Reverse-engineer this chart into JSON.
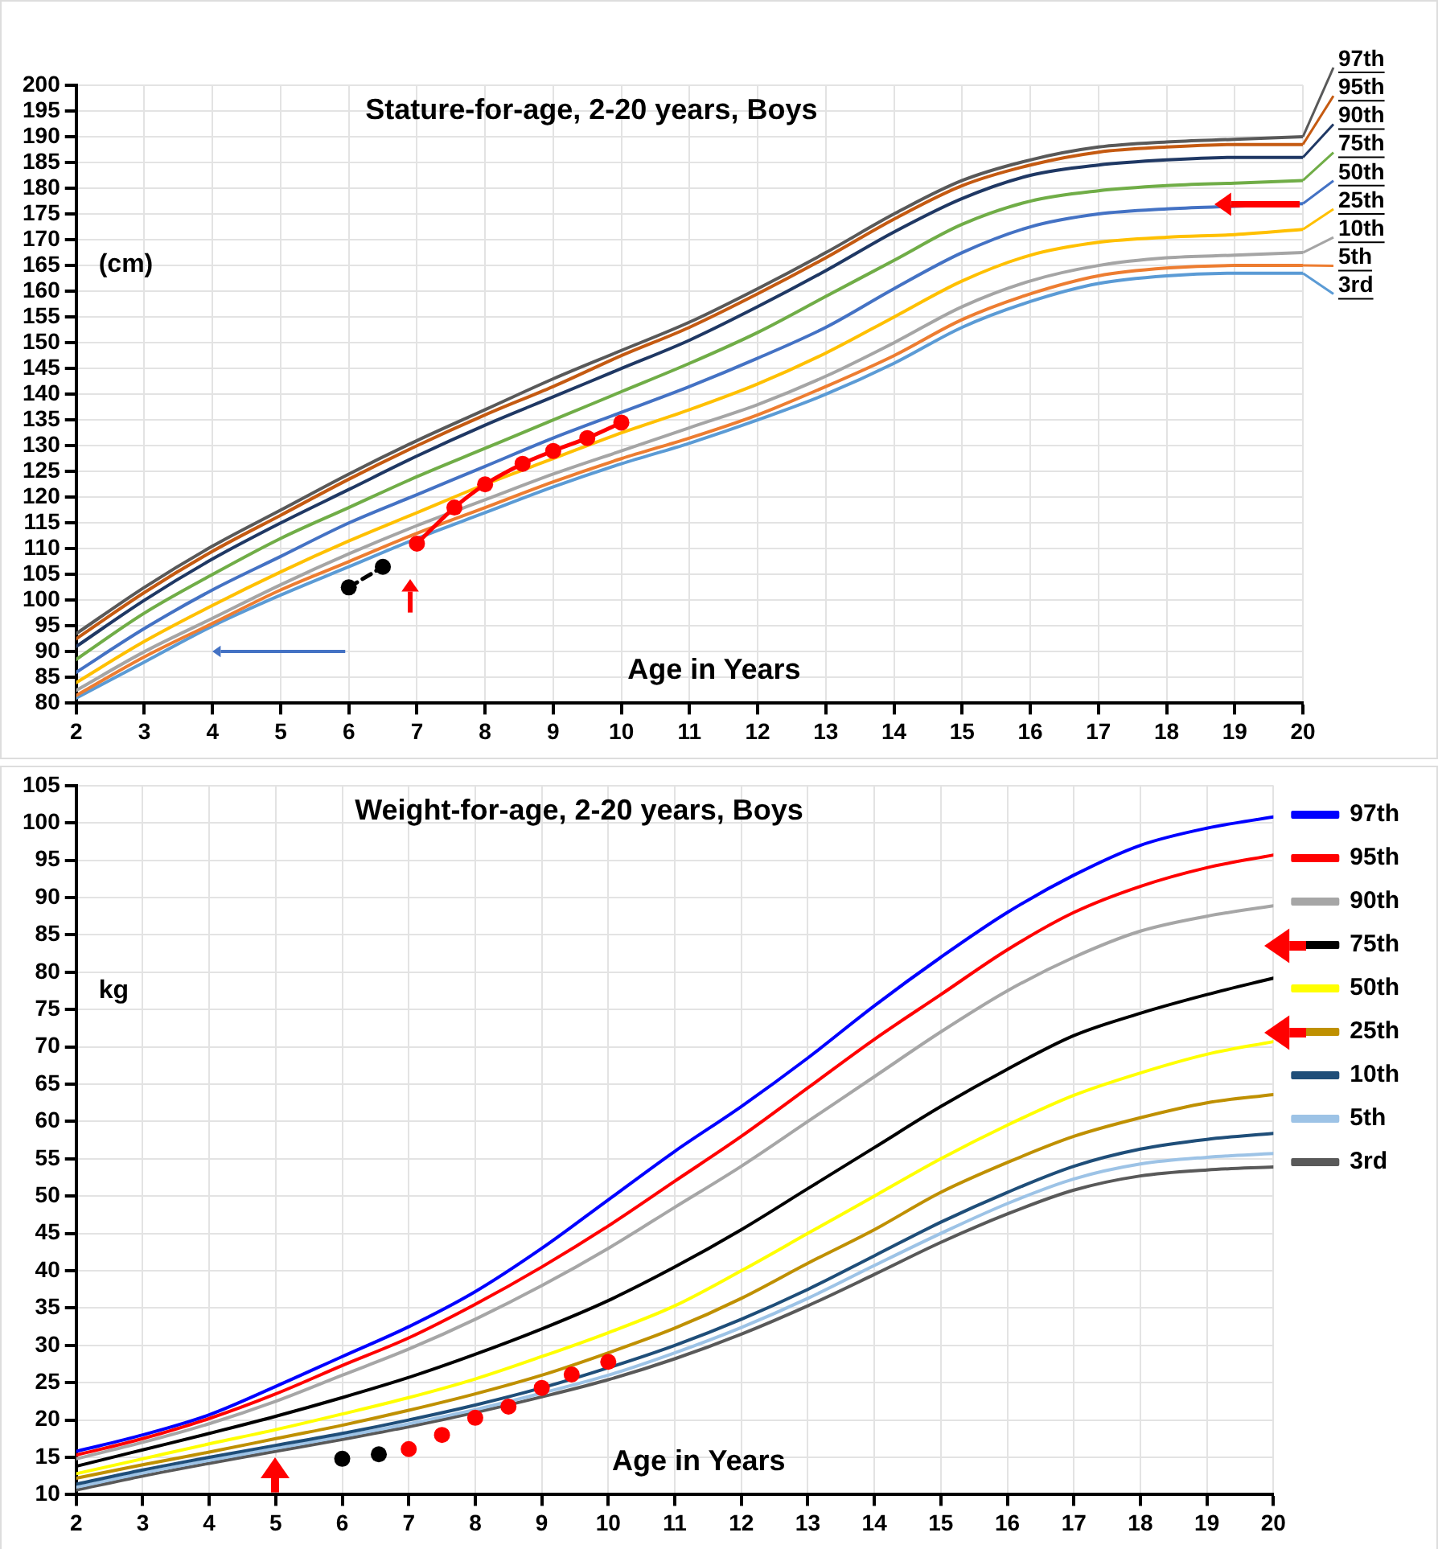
{
  "chart_data": [
    {
      "type": "line",
      "title": "Stature-for-age, 2-20 years, Boys",
      "xlabel": "Age in Years",
      "ylabel": "(cm)",
      "xlim": [
        2,
        20
      ],
      "xticks": [
        2,
        3,
        4,
        5,
        6,
        7,
        8,
        9,
        10,
        11,
        12,
        13,
        14,
        15,
        16,
        17,
        18,
        19,
        20
      ],
      "ylim": [
        80,
        200
      ],
      "yticks": [
        80,
        85,
        90,
        95,
        100,
        105,
        110,
        115,
        120,
        125,
        130,
        135,
        140,
        145,
        150,
        155,
        160,
        165,
        170,
        175,
        180,
        185,
        190,
        195,
        200
      ],
      "grid": true,
      "legend": false,
      "marker": "none",
      "line_style": "solid",
      "x": [
        2,
        3,
        4,
        5,
        6,
        7,
        8,
        9,
        10,
        11,
        12,
        13,
        14,
        15,
        16,
        17,
        18,
        19,
        20
      ],
      "series": [
        {
          "name": "97th",
          "color": "#595959",
          "values": [
            93.5,
            102.5,
            110.5,
            117.5,
            124.5,
            131,
            137,
            143,
            148.5,
            154,
            160.5,
            167.5,
            175,
            181.5,
            185.5,
            188,
            189,
            189.5,
            190
          ]
        },
        {
          "name": "95th",
          "color": "#c55a11",
          "values": [
            92.5,
            101.5,
            109.5,
            116.5,
            123.5,
            130,
            136,
            141.5,
            147.5,
            153,
            159.5,
            166.5,
            174,
            180.5,
            184.5,
            187,
            188,
            188.5,
            188.5
          ]
        },
        {
          "name": "90th",
          "color": "#1f3864",
          "values": [
            91,
            100,
            108,
            115,
            121.5,
            128,
            134,
            139.5,
            145,
            150.5,
            157,
            164,
            171.5,
            178,
            182.5,
            184.5,
            185.5,
            186,
            186
          ]
        },
        {
          "name": "75th",
          "color": "#70ad47",
          "values": [
            88.5,
            97.5,
            105,
            112,
            118,
            124,
            129.5,
            135,
            140.5,
            146,
            152,
            159,
            166,
            173,
            177.5,
            179.5,
            180.5,
            181,
            181.5
          ]
        },
        {
          "name": "50th",
          "color": "#4472c4",
          "values": [
            86,
            94.5,
            102,
            108.5,
            115,
            120.5,
            126,
            131.5,
            136.5,
            141.5,
            147,
            153,
            160.5,
            167.5,
            172.5,
            175,
            176,
            176.5,
            177
          ]
        },
        {
          "name": "25th",
          "color": "#ffc000",
          "values": [
            84,
            92,
            99,
            105.5,
            111.5,
            117,
            122.5,
            127.5,
            132.5,
            137,
            142,
            148,
            155,
            162,
            167,
            169.5,
            170.5,
            171,
            172
          ]
        },
        {
          "name": "10th",
          "color": "#a5a5a5",
          "values": [
            82.5,
            90,
            96.5,
            103,
            109,
            114.5,
            119.5,
            124.5,
            129,
            133.5,
            138,
            143.5,
            150,
            157,
            162,
            165,
            166.5,
            167,
            167.5
          ]
        },
        {
          "name": "5th",
          "color": "#ed7d31",
          "values": [
            81.5,
            89,
            95.5,
            102,
            107.5,
            113,
            118,
            123,
            127.5,
            131.5,
            136,
            141.5,
            147.5,
            154.5,
            159.5,
            163,
            164.5,
            165,
            165
          ]
        },
        {
          "name": "3rd",
          "color": "#5b9bd5",
          "values": [
            81,
            88,
            95,
            101,
            106.5,
            112,
            117,
            122,
            126.5,
            130.5,
            135,
            140,
            146,
            153,
            158,
            161.5,
            163,
            163.5,
            163.5
          ]
        },
        {
          "type": "line",
          "color": "#000000",
          "marker": "circle",
          "line_style": "dashed",
          "x": [
            6,
            6.5
          ],
          "values": [
            102.5,
            106.5
          ]
        },
        {
          "type": "line",
          "color": "#ff0000",
          "marker": "circle",
          "line_style": "solid",
          "x": [
            7,
            7.55,
            8,
            8.55,
            9,
            9.5,
            10
          ],
          "values": [
            111,
            118,
            122.5,
            126.5,
            129,
            131.5,
            134.5
          ]
        }
      ]
    },
    {
      "type": "line",
      "title": "Weight-for-age, 2-20 years, Boys",
      "xlabel": "Age in Years",
      "ylabel": "kg",
      "xlim": [
        2,
        20
      ],
      "xticks": [
        2,
        3,
        4,
        5,
        6,
        7,
        8,
        9,
        10,
        11,
        12,
        13,
        14,
        15,
        16,
        17,
        18,
        19,
        20
      ],
      "ylim": [
        10,
        105
      ],
      "yticks": [
        10,
        15,
        20,
        25,
        30,
        35,
        40,
        45,
        50,
        55,
        60,
        65,
        70,
        75,
        80,
        85,
        90,
        95,
        100,
        105
      ],
      "grid": true,
      "legend": "right",
      "marker": "none",
      "line_style": "solid",
      "x": [
        2,
        3,
        4,
        5,
        6,
        7,
        8,
        9,
        10,
        11,
        12,
        13,
        14,
        15,
        16,
        17,
        18,
        19,
        20
      ],
      "series": [
        {
          "name": "97th",
          "color": "#0000ff",
          "values": [
            15.8,
            18,
            20.7,
            24.5,
            28.5,
            32.5,
            37.2,
            43,
            49.5,
            56,
            62,
            68.5,
            75.5,
            82,
            88,
            93,
            97,
            99.3,
            100.8
          ]
        },
        {
          "name": "95th",
          "color": "#ff0000",
          "values": [
            15.3,
            17.5,
            20.2,
            23.5,
            27.3,
            31,
            35.5,
            40.5,
            46,
            52,
            58,
            64.5,
            71,
            77,
            83,
            88,
            91.5,
            94,
            95.7
          ]
        },
        {
          "name": "90th",
          "color": "#a6a6a6",
          "values": [
            14.8,
            17,
            19.5,
            22.5,
            26,
            29.5,
            33.5,
            38,
            43,
            48.5,
            54,
            60,
            66,
            72,
            77.5,
            82,
            85.5,
            87.5,
            88.9
          ]
        },
        {
          "name": "75th",
          "color": "#000000",
          "values": [
            13.8,
            16,
            18.2,
            20.5,
            23,
            25.7,
            28.8,
            32.2,
            36,
            40.5,
            45.5,
            51,
            56.5,
            62,
            67,
            71.5,
            74.5,
            77,
            79.2
          ]
        },
        {
          "name": "50th",
          "color": "#ffff00",
          "values": [
            12.8,
            14.8,
            16.8,
            18.7,
            20.8,
            23,
            25.5,
            28.5,
            31.7,
            35.3,
            40,
            45,
            50,
            55,
            59.5,
            63.5,
            66.5,
            69,
            70.7
          ]
        },
        {
          "name": "25th",
          "color": "#bf9000",
          "values": [
            12.2,
            14,
            15.7,
            17.5,
            19.3,
            21.3,
            23.5,
            26,
            29,
            32.3,
            36.3,
            41,
            45.5,
            50.5,
            54.5,
            58,
            60.5,
            62.5,
            63.6
          ]
        },
        {
          "name": "10th",
          "color": "#1f4e79",
          "values": [
            11.4,
            13.3,
            15,
            16.6,
            18.2,
            20,
            22,
            24.3,
            27,
            30,
            33.5,
            37.5,
            42,
            46.5,
            50.5,
            54,
            56.3,
            57.6,
            58.4
          ]
        },
        {
          "name": "5th",
          "color": "#9dc3e6",
          "values": [
            11,
            12.9,
            14.6,
            16.2,
            17.8,
            19.5,
            21.4,
            23.6,
            26,
            29,
            32.4,
            36.3,
            40.7,
            45,
            49,
            52.3,
            54.3,
            55.2,
            55.7
          ]
        },
        {
          "name": "3rd",
          "color": "#595959",
          "values": [
            10.6,
            12.5,
            14.2,
            15.8,
            17.4,
            19.1,
            21,
            23.1,
            25.4,
            28.2,
            31.5,
            35.3,
            39.5,
            43.8,
            47.6,
            50.8,
            52.7,
            53.5,
            53.9
          ]
        },
        {
          "type": "scatter",
          "color": "#000000",
          "marker": "circle",
          "x": [
            6,
            6.55
          ],
          "values": [
            14.8,
            15.4
          ]
        },
        {
          "type": "scatter",
          "color": "#ff0000",
          "marker": "circle",
          "x": [
            7,
            7.5,
            8,
            8.5,
            9,
            9.45,
            10
          ],
          "values": [
            16.1,
            18,
            20.3,
            21.8,
            24.3,
            26.1,
            27.8
          ]
        }
      ]
    }
  ]
}
